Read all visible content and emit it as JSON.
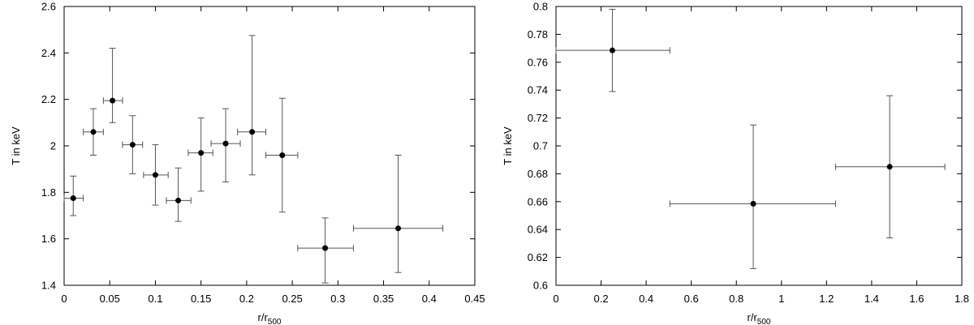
{
  "chart_data": [
    {
      "type": "scatter",
      "title": "",
      "xlabel": "r/r",
      "xlabel_sub": "500",
      "ylabel": "T in keV",
      "xlim": [
        0,
        0.45
      ],
      "ylim": [
        1.4,
        2.6
      ],
      "xticks": [
        "0",
        "0.05",
        "0.1",
        "0.15",
        "0.2",
        "0.25",
        "0.3",
        "0.35",
        "0.4",
        "0.45"
      ],
      "yticks": [
        "1.4",
        "1.6",
        "1.8",
        "2",
        "2.2",
        "2.4",
        "2.6"
      ],
      "grid": false,
      "error_bars": true,
      "points": [
        {
          "x": 0.01,
          "y": 1.775,
          "xerr": [
            0.0,
            0.021
          ],
          "yerr": [
            1.7,
            1.87
          ]
        },
        {
          "x": 0.032,
          "y": 2.06,
          "xerr": [
            0.021,
            0.043
          ],
          "yerr": [
            1.96,
            2.16
          ]
        },
        {
          "x": 0.053,
          "y": 2.195,
          "xerr": [
            0.043,
            0.064
          ],
          "yerr": [
            2.1,
            2.42
          ]
        },
        {
          "x": 0.075,
          "y": 2.005,
          "xerr": [
            0.064,
            0.086
          ],
          "yerr": [
            1.88,
            2.13
          ]
        },
        {
          "x": 0.1,
          "y": 1.875,
          "xerr": [
            0.087,
            0.114
          ],
          "yerr": [
            1.745,
            2.005
          ]
        },
        {
          "x": 0.125,
          "y": 1.765,
          "xerr": [
            0.112,
            0.139
          ],
          "yerr": [
            1.675,
            1.905
          ]
        },
        {
          "x": 0.15,
          "y": 1.97,
          "xerr": [
            0.136,
            0.163
          ],
          "yerr": [
            1.805,
            2.12
          ]
        },
        {
          "x": 0.177,
          "y": 2.01,
          "xerr": [
            0.161,
            0.193
          ],
          "yerr": [
            1.845,
            2.16
          ]
        },
        {
          "x": 0.206,
          "y": 2.06,
          "xerr": [
            0.19,
            0.221
          ],
          "yerr": [
            1.875,
            2.475
          ]
        },
        {
          "x": 0.239,
          "y": 1.96,
          "xerr": [
            0.221,
            0.256
          ],
          "yerr": [
            1.715,
            2.205
          ]
        },
        {
          "x": 0.286,
          "y": 1.56,
          "xerr": [
            0.256,
            0.317
          ],
          "yerr": [
            1.41,
            1.69
          ]
        },
        {
          "x": 0.366,
          "y": 1.645,
          "xerr": [
            0.317,
            0.415
          ],
          "yerr": [
            1.455,
            1.96
          ]
        }
      ]
    },
    {
      "type": "scatter",
      "title": "",
      "xlabel": "r/r",
      "xlabel_sub": "500",
      "ylabel": "T in keV",
      "xlim": [
        0,
        1.8
      ],
      "ylim": [
        0.6,
        0.8
      ],
      "xticks": [
        "0",
        "0.2",
        "0.4",
        "0.6",
        "0.8",
        "1",
        "1.2",
        "1.4",
        "1.6",
        "1.8"
      ],
      "yticks": [
        "0.6",
        "0.62",
        "0.64",
        "0.66",
        "0.68",
        "0.7",
        "0.72",
        "0.74",
        "0.76",
        "0.78",
        "0.8"
      ],
      "grid": false,
      "error_bars": true,
      "points": [
        {
          "x": 0.25,
          "y": 0.7685,
          "xerr": [
            0.0,
            0.505
          ],
          "yerr": [
            0.739,
            0.798
          ]
        },
        {
          "x": 0.875,
          "y": 0.6585,
          "xerr": [
            0.505,
            1.24
          ],
          "yerr": [
            0.612,
            0.715
          ]
        },
        {
          "x": 1.48,
          "y": 0.685,
          "xerr": [
            1.24,
            1.725
          ],
          "yerr": [
            0.634,
            0.736
          ]
        }
      ]
    }
  ]
}
